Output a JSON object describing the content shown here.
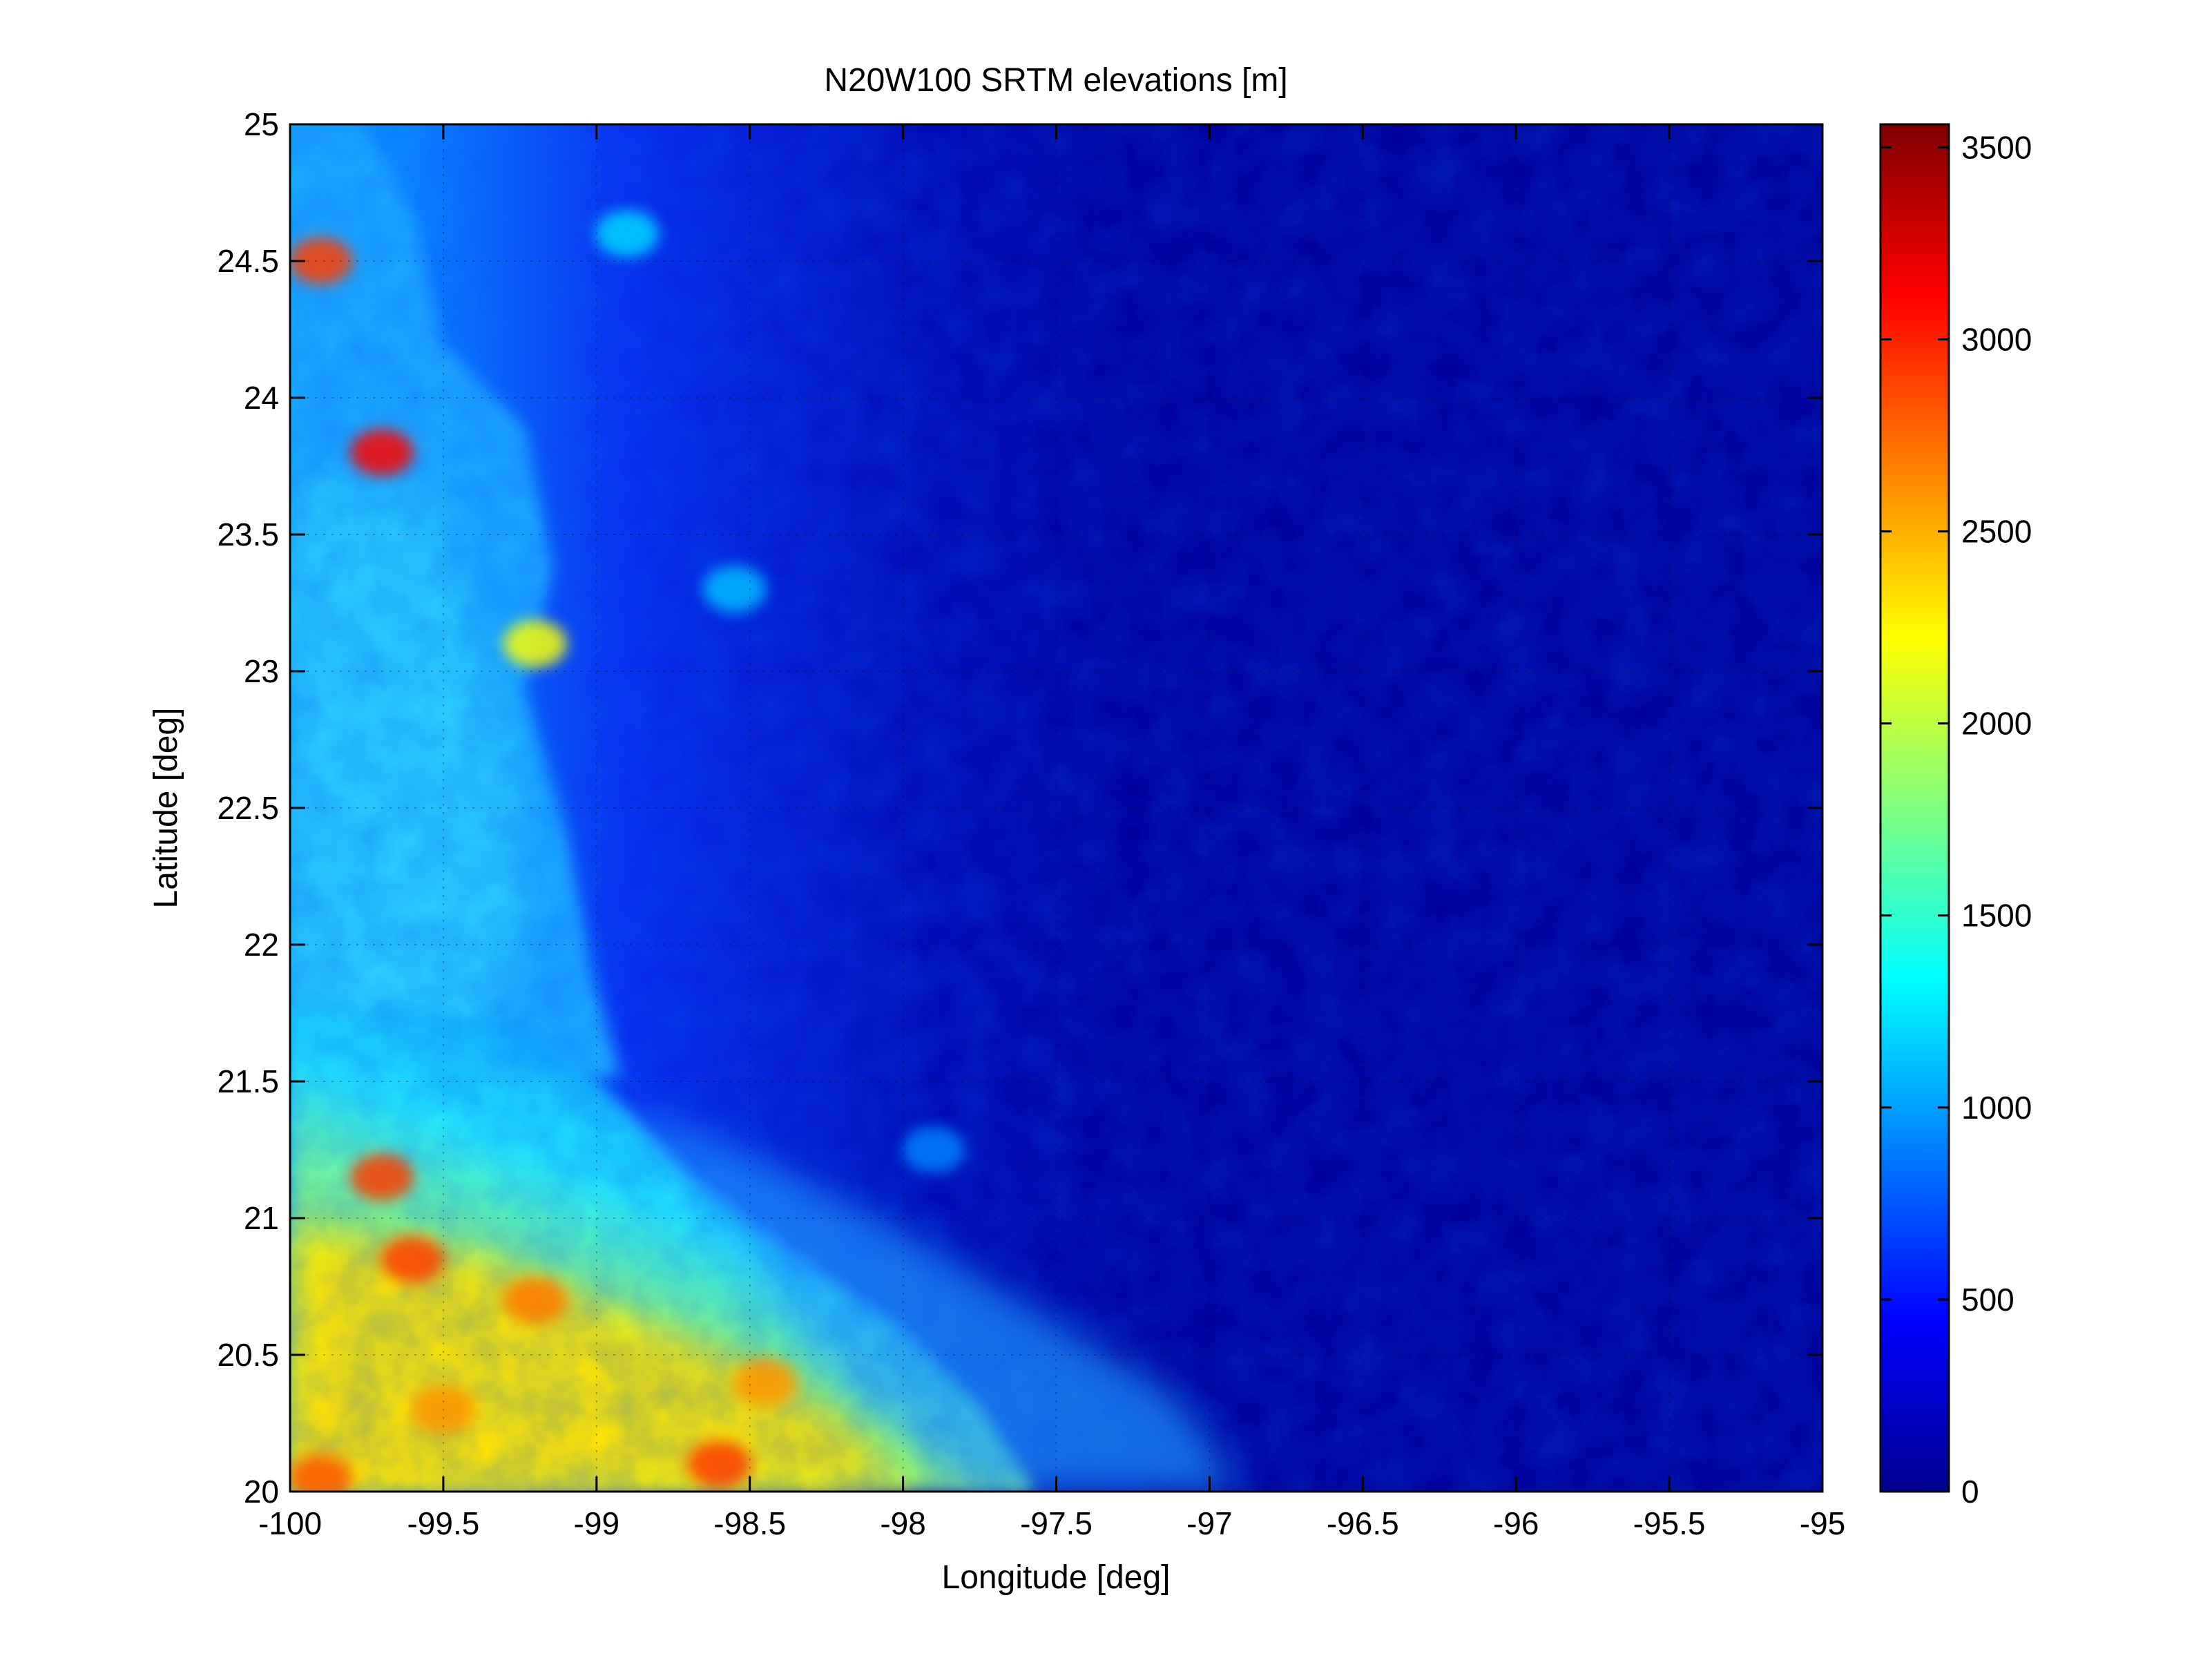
{
  "chart_data": {
    "type": "heatmap",
    "title": "N20W100 SRTM elevations [m]",
    "xlabel": "Longitude [deg]",
    "ylabel": "Latitude [deg]",
    "xlim": [
      -100,
      -95
    ],
    "ylim": [
      20,
      25
    ],
    "clim": [
      0,
      3560
    ],
    "x_ticks": [
      -100,
      -99.5,
      -99,
      -98.5,
      -98,
      -97.5,
      -97,
      -96.5,
      -96,
      -95.5,
      -95
    ],
    "x_tick_labels": [
      "-100",
      "-99.5",
      "-99",
      "-98.5",
      "-98",
      "-97.5",
      "-97",
      "-96.5",
      "-96",
      "-95.5",
      "-95"
    ],
    "y_ticks": [
      20,
      20.5,
      21,
      21.5,
      22,
      22.5,
      23,
      23.5,
      24,
      24.5,
      25
    ],
    "y_tick_labels": [
      "20",
      "20.5",
      "21",
      "21.5",
      "22",
      "22.5",
      "23",
      "23.5",
      "24",
      "24.5",
      "25"
    ],
    "colorbar": {
      "ticks": [
        0,
        500,
        1000,
        1500,
        2000,
        2500,
        3000,
        3500
      ],
      "tick_labels": [
        "0",
        "500",
        "1000",
        "1500",
        "2000",
        "2500",
        "3000",
        "3500"
      ],
      "colormap": "jet"
    },
    "grid": true,
    "grid_style": "dotted",
    "description_regions": [
      {
        "lon": -99.7,
        "lat": 23.8,
        "elev": 3100
      },
      {
        "lon": -99.9,
        "lat": 24.5,
        "elev": 2900
      },
      {
        "lon": -99.7,
        "lat": 21.15,
        "elev": 2900
      },
      {
        "lon": -99.6,
        "lat": 20.85,
        "elev": 2900
      },
      {
        "lon": -99.2,
        "lat": 20.7,
        "elev": 2700
      },
      {
        "lon": -98.6,
        "lat": 20.1,
        "elev": 2900
      },
      {
        "lon": -99.9,
        "lat": 20.05,
        "elev": 2800
      },
      {
        "lon": -99.5,
        "lat": 20.3,
        "elev": 2600
      },
      {
        "lon": -98.45,
        "lat": 20.4,
        "elev": 2600
      },
      {
        "lon": -99.2,
        "lat": 23.1,
        "elev": 2200
      },
      {
        "lon": -98.55,
        "lat": 23.3,
        "elev": 1100
      },
      {
        "lon": -98.9,
        "lat": 24.6,
        "elev": 1200
      },
      {
        "lon": -97.9,
        "lat": 21.25,
        "elev": 900
      }
    ]
  }
}
